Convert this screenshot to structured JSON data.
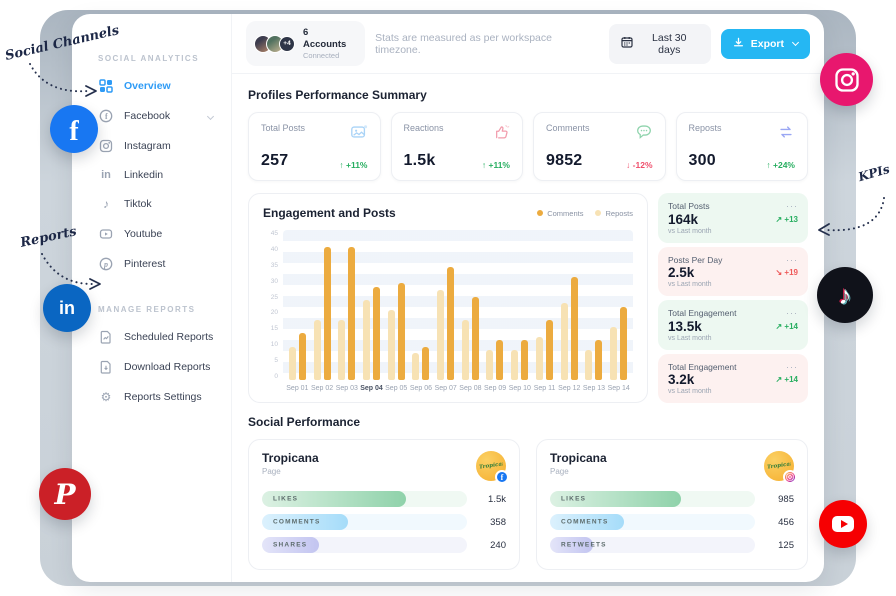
{
  "annotations": {
    "social_channels": "Social Channels",
    "reports": "Reports",
    "kpis": "KPIs"
  },
  "sidebar": {
    "section1_label": "SOCIAL ANALYTICS",
    "items": [
      {
        "label": "Overview",
        "active": true,
        "icon": "grid-icon"
      },
      {
        "label": "Facebook",
        "icon": "facebook-icon",
        "expandable": true
      },
      {
        "label": "Instagram",
        "icon": "instagram-icon"
      },
      {
        "label": "Linkedin",
        "icon": "linkedin-icon"
      },
      {
        "label": "Tiktok",
        "icon": "tiktok-icon"
      },
      {
        "label": "Youtube",
        "icon": "youtube-icon"
      },
      {
        "label": "Pinterest",
        "icon": "pinterest-icon"
      }
    ],
    "section2_label": "MANAGE REPORTS",
    "report_items": [
      {
        "label": "Scheduled Reports",
        "icon": "document-chart-icon"
      },
      {
        "label": "Download Reports",
        "icon": "document-download-icon"
      },
      {
        "label": "Reports Settings",
        "icon": "gear-icon"
      }
    ]
  },
  "topbar": {
    "accounts": {
      "count_label": "6 Accounts",
      "status": "Connected",
      "extra": "+4"
    },
    "note": "Stats are measured as per workspace timezone.",
    "date_range": "Last 30 days",
    "export_label": "Export"
  },
  "summary": {
    "title": "Profiles Performance Summary",
    "cards": [
      {
        "label": "Total Posts",
        "value": "257",
        "delta": "+11%",
        "trend": "up",
        "icon": "image-icon"
      },
      {
        "label": "Reactions",
        "value": "1.5k",
        "delta": "+11%",
        "trend": "up",
        "icon": "thumbs-up-icon"
      },
      {
        "label": "Comments",
        "value": "9852",
        "delta": "-12%",
        "trend": "down",
        "icon": "comment-icon"
      },
      {
        "label": "Reposts",
        "value": "300",
        "delta": "+24%",
        "trend": "up",
        "icon": "repost-icon"
      }
    ]
  },
  "chart_data": {
    "type": "bar",
    "title": "Engagement and Posts",
    "categories": [
      "Sep 01",
      "Sep 02",
      "Sep 03",
      "Sep 04",
      "Sep 05",
      "Sep 06",
      "Sep 07",
      "Sep 08",
      "Sep 09",
      "Sep 10",
      "Sep 11",
      "Sep 12",
      "Sep 13",
      "Sep 14"
    ],
    "series": [
      {
        "name": "Comments",
        "color": "#ECAB3F",
        "values": [
          14,
          40,
          40,
          28,
          29,
          10,
          34,
          25,
          12,
          12,
          18,
          31,
          12,
          22
        ]
      },
      {
        "name": "Reposts",
        "color": "#F7E2B4",
        "values": [
          10,
          18,
          18,
          24,
          21,
          8,
          27,
          18,
          9,
          9,
          13,
          23,
          9,
          16
        ]
      }
    ],
    "draw_order": [
      1,
      0
    ],
    "ylim": [
      0,
      45
    ],
    "yticks": [
      0,
      5,
      10,
      15,
      20,
      25,
      30,
      35,
      40,
      45
    ],
    "xlabel": "",
    "ylabel": "",
    "grid": "horizontal-bands",
    "legend_position": "top-right"
  },
  "kpi_column": {
    "cards": [
      {
        "label": "Total Posts",
        "value": "164k",
        "sub": "vs Last month",
        "delta": "+13",
        "bg": "green",
        "delta_color": "green",
        "trend": "up"
      },
      {
        "label": "Posts Per Day",
        "value": "2.5k",
        "sub": "vs Last month",
        "delta": "+19",
        "bg": "red",
        "delta_color": "red",
        "trend": "down"
      },
      {
        "label": "Total Engagement",
        "value": "13.5k",
        "sub": "vs Last month",
        "delta": "+14",
        "bg": "green",
        "delta_color": "green",
        "trend": "up"
      },
      {
        "label": "Total Engagement",
        "value": "3.2k",
        "sub": "vs Last month",
        "delta": "+14",
        "bg": "red",
        "delta_color": "green",
        "trend": "up"
      }
    ]
  },
  "social_performance": {
    "title": "Social Performance",
    "cards": [
      {
        "name": "Tropicana",
        "type": "Page",
        "network": "facebook",
        "metrics": [
          {
            "label": "LIKES",
            "value": "1.5k",
            "pct": 70,
            "color": "green"
          },
          {
            "label": "COMMENTS",
            "value": "358",
            "pct": 42,
            "color": "blue"
          },
          {
            "label": "SHARES",
            "value": "240",
            "pct": 28,
            "color": "purple"
          }
        ]
      },
      {
        "name": "Tropicana",
        "type": "Page",
        "network": "instagram",
        "metrics": [
          {
            "label": "LIKES",
            "value": "985",
            "pct": 64,
            "color": "green"
          },
          {
            "label": "COMMENTS",
            "value": "456",
            "pct": 36,
            "color": "blue"
          },
          {
            "label": "RETWEETS",
            "value": "125",
            "pct": 21,
            "color": "purple"
          }
        ]
      }
    ]
  }
}
